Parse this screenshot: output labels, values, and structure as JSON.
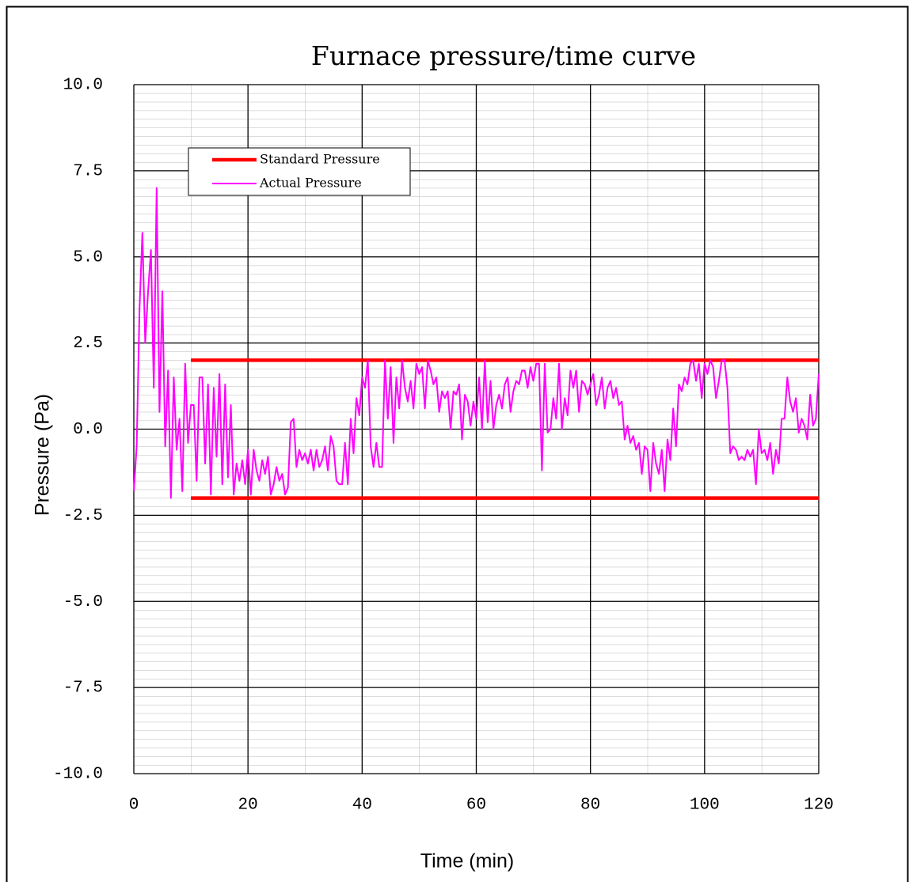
{
  "chart_data": {
    "type": "line",
    "title": "Furnace pressure/time curve",
    "xlabel": "Time (min)",
    "ylabel": "Pressure (Pa)",
    "xlim": [
      0,
      120
    ],
    "ylim": [
      -10,
      10
    ],
    "xticks": [
      0,
      20,
      40,
      60,
      80,
      100,
      120
    ],
    "yticks": [
      {
        "value": 10,
        "label": "10.0"
      },
      7.5,
      {
        "value": 5,
        "label": "5.0"
      },
      2.5,
      {
        "value": 0,
        "label": "0.0"
      },
      -2.5,
      {
        "value": -5,
        "label": "-5.0"
      },
      -7.5,
      {
        "value": -10,
        "label": "-10.0"
      }
    ],
    "grid": true,
    "legend": "upper left",
    "series": [
      {
        "name": "Standard Pressure",
        "color": "#ff0000",
        "x": [
          10,
          120,
          120,
          10,
          120
        ],
        "values": [
          2,
          2,
          null,
          -2,
          -2
        ]
      },
      {
        "name": "Actual Pressure",
        "color": "#ff00ff",
        "x": [
          0,
          0.5,
          1,
          1.5,
          2,
          2.5,
          3,
          3.5,
          4,
          4.5,
          5,
          5.5,
          6,
          6.5,
          7,
          7.5,
          8,
          8.5,
          9,
          9.5,
          10,
          10.5,
          11,
          11.5,
          12,
          12.5,
          13,
          13.5,
          14,
          14.5,
          15,
          15.5,
          16,
          16.5,
          17,
          17.5,
          18,
          18.5,
          19,
          19.5,
          20,
          20.5,
          21,
          21.5,
          22,
          22.5,
          23,
          23.5,
          24,
          24.5,
          25,
          25.5,
          26,
          26.5,
          27,
          27.5,
          28,
          28.5,
          29,
          29.5,
          30,
          30.5,
          31,
          31.5,
          32,
          32.5,
          33,
          33.5,
          34,
          34.5,
          35,
          35.5,
          36,
          36.5,
          37,
          37.5,
          38,
          38.5,
          39,
          39.5,
          40,
          40.5,
          41,
          41.5,
          42,
          42.5,
          43,
          43.5,
          44,
          44.5,
          45,
          45.5,
          46,
          46.5,
          47,
          47.5,
          48,
          48.5,
          49,
          49.5,
          50,
          50.5,
          51,
          51.5,
          52,
          52.5,
          53,
          53.5,
          54,
          54.5,
          55,
          55.5,
          56,
          56.5,
          57,
          57.5,
          58,
          58.5,
          59,
          59.5,
          60,
          60.5,
          61,
          61.5,
          62,
          62.5,
          63,
          63.5,
          64,
          64.5,
          65,
          65.5,
          66,
          66.5,
          67,
          67.5,
          68,
          68.5,
          69,
          69.5,
          70,
          70.5,
          71,
          71.5,
          72,
          72.5,
          73,
          73.5,
          74,
          74.5,
          75,
          75.5,
          76,
          76.5,
          77,
          77.5,
          78,
          78.5,
          79,
          79.5,
          80,
          80.5,
          81,
          81.5,
          82,
          82.5,
          83,
          83.5,
          84,
          84.5,
          85,
          85.5,
          86,
          86.5,
          87,
          87.5,
          88,
          88.5,
          89,
          89.5,
          90,
          90.5,
          91,
          91.5,
          92,
          92.5,
          93,
          93.5,
          94,
          94.5,
          95,
          95.5,
          96,
          96.5,
          97,
          97.5,
          98,
          98.5,
          99,
          99.5,
          100,
          100.5,
          101,
          101.5,
          102,
          102.5,
          103,
          103.5,
          104,
          104.5,
          105,
          105.5,
          106,
          106.5,
          107,
          107.5,
          108,
          108.5,
          109,
          109.5,
          110,
          110.5,
          111,
          111.5,
          112,
          112.5,
          113,
          113.5,
          114,
          114.5,
          115,
          115.5,
          116,
          116.5,
          117,
          117.5,
          118,
          118.5,
          119,
          119.5,
          120
        ],
        "values": [
          -1.8,
          -0.5,
          3.5,
          5.7,
          2.5,
          4.0,
          5.2,
          1.2,
          7.0,
          0.5,
          4.0,
          -0.5,
          1.7,
          -2.0,
          1.5,
          -0.6,
          0.3,
          -1.8,
          1.9,
          -0.4,
          0.7,
          0.7,
          -1.5,
          1.5,
          1.5,
          -1.0,
          1.3,
          -1.9,
          1.2,
          -0.8,
          1.6,
          -1.6,
          1.3,
          -1.4,
          0.7,
          -1.9,
          -1.0,
          -1.5,
          -0.9,
          -1.6,
          -0.6,
          -1.9,
          -0.6,
          -1.2,
          -1.5,
          -0.9,
          -1.3,
          -0.8,
          -1.9,
          -1.6,
          -1.1,
          -1.5,
          -1.3,
          -1.9,
          -1.7,
          0.2,
          0.3,
          -1.1,
          -0.6,
          -0.9,
          -0.7,
          -1.0,
          -0.6,
          -1.2,
          -0.6,
          -1.1,
          -0.9,
          -0.5,
          -1.2,
          -0.2,
          -0.5,
          -1.5,
          -1.6,
          -1.6,
          -0.4,
          -1.6,
          0.3,
          -0.7,
          0.9,
          0.4,
          1.5,
          1.2,
          2.0,
          -0.5,
          -1.1,
          -0.4,
          -1.1,
          -1.1,
          2.0,
          0.3,
          1.8,
          -0.4,
          1.5,
          0.6,
          2.0,
          1.2,
          0.8,
          1.4,
          0.6,
          1.9,
          1.6,
          1.8,
          0.6,
          2.0,
          1.7,
          1.3,
          1.5,
          0.5,
          1.1,
          0.9,
          1.1,
          0.0,
          1.1,
          1.0,
          1.3,
          -0.3,
          1.0,
          0.8,
          0.1,
          0.8,
          0.3,
          1.5,
          0.0,
          2.0,
          0.2,
          1.4,
          0.0,
          0.7,
          1.0,
          0.6,
          1.3,
          1.5,
          0.5,
          1.1,
          1.4,
          1.3,
          1.7,
          1.7,
          1.2,
          1.8,
          1.4,
          1.9,
          1.9,
          -1.2,
          1.9,
          -0.1,
          0.0,
          0.9,
          0.3,
          1.9,
          0.0,
          0.9,
          0.4,
          1.7,
          1.2,
          1.7,
          0.5,
          1.4,
          1.3,
          1.0,
          1.3,
          1.6,
          0.7,
          1.0,
          1.5,
          0.6,
          1.2,
          1.4,
          0.9,
          1.2,
          0.7,
          0.8,
          -0.3,
          0.1,
          -0.4,
          -0.2,
          -0.6,
          -0.4,
          -1.3,
          -0.5,
          -0.6,
          -1.8,
          -0.4,
          -1.0,
          -1.3,
          -0.6,
          -1.8,
          -0.3,
          -0.9,
          0.6,
          -0.5,
          1.3,
          1.1,
          1.5,
          1.3,
          1.9,
          2.0,
          1.4,
          1.9,
          0.9,
          1.9,
          1.6,
          2.0,
          1.8,
          0.9,
          1.4,
          2.0,
          2.0,
          1.2,
          -0.7,
          -0.5,
          -0.6,
          -0.9,
          -0.8,
          -0.9,
          -0.6,
          -0.8,
          -0.6,
          -1.6,
          0.0,
          -0.7,
          -0.6,
          -0.9,
          -0.4,
          -1.3,
          -0.6,
          -1.0,
          0.3,
          0.3,
          1.5,
          0.8,
          0.5,
          0.9,
          -0.1,
          0.3,
          0.1,
          -0.3,
          1.0,
          0.1,
          0.3,
          1.6
        ]
      }
    ]
  }
}
